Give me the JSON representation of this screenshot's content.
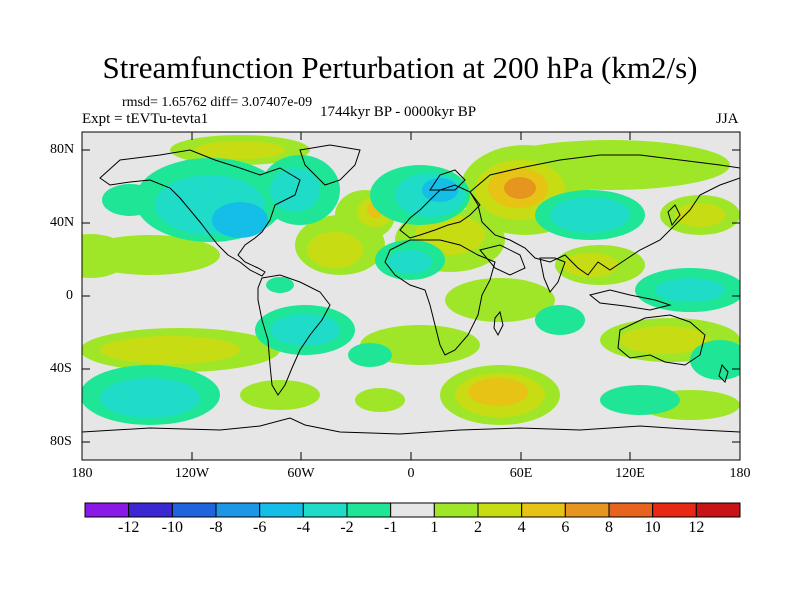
{
  "title": "Streamfunction Perturbation at 200 hPa (km2/s)",
  "stats": "rmsd= 1.65762 diff= 3.07407e-09",
  "experiment": "Expt = tEVTu-tevta1",
  "period": "1744kyr BP - 0000kyr BP",
  "season": "JJA",
  "y_axis": {
    "ticks": [
      "80N",
      "40N",
      "0",
      "40S",
      "80S"
    ]
  },
  "x_axis": {
    "ticks": [
      "180",
      "120W",
      "60W",
      "0",
      "60E",
      "120E",
      "180"
    ]
  },
  "colorbar": {
    "labels": [
      "-12",
      "-10",
      "-8",
      "-6",
      "-4",
      "-2",
      "-1",
      "1",
      "2",
      "4",
      "6",
      "8",
      "10",
      "12"
    ],
    "colors": [
      "#8A18E6",
      "#3C28D2",
      "#1E64DC",
      "#1E96E6",
      "#14BEE6",
      "#1EDCC8",
      "#1EE696",
      "#E6E6E6",
      "#A0E628",
      "#C8DC14",
      "#E6C314",
      "#E6961E",
      "#E6641E",
      "#E62814",
      "#C81414"
    ]
  },
  "colors": {
    "background_field": "#E6E6E6",
    "coast": "#000000"
  }
}
